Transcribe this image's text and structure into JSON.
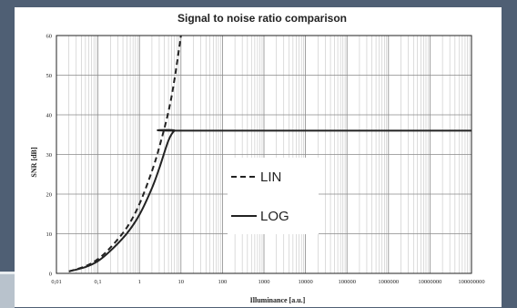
{
  "chart_data": {
    "type": "line",
    "title": "Signal to noise ratio comparison",
    "xlabel": "Illuminance [a.u.]",
    "ylabel": "SNR [dB]",
    "x_scale": "log",
    "xlim": [
      0.01,
      100000000
    ],
    "ylim": [
      0,
      60
    ],
    "x_tick_labels": [
      "0,01",
      "0,1",
      "1",
      "10",
      "100",
      "1000",
      "10000",
      "100000",
      "1000000",
      "10000000",
      "100000000"
    ],
    "y_tick_labels": [
      "0",
      "10",
      "20",
      "30",
      "40",
      "50",
      "60"
    ],
    "y_ticks": [
      0,
      10,
      20,
      30,
      40,
      50,
      60
    ],
    "grid": true,
    "legend_position": "center-left",
    "series": [
      {
        "name": "LIN",
        "style": "dashed",
        "color": "#222222",
        "x": [
          0.02,
          0.05,
          0.1,
          0.2,
          0.5,
          1,
          2,
          3,
          5,
          7,
          10
        ],
        "y": [
          0.5,
          1.8,
          3.6,
          6.5,
          11.6,
          17.5,
          25.8,
          31.8,
          40.8,
          49,
          60
        ]
      },
      {
        "name": "LOG",
        "style": "solid",
        "color": "#222222",
        "x": [
          0.02,
          0.05,
          0.1,
          0.2,
          0.5,
          1,
          2,
          3,
          5,
          7,
          10,
          100000000
        ],
        "y": [
          0.5,
          1.6,
          3.1,
          5.7,
          10.1,
          14.8,
          21.5,
          26.5,
          33.5,
          36,
          36,
          36
        ]
      }
    ]
  }
}
